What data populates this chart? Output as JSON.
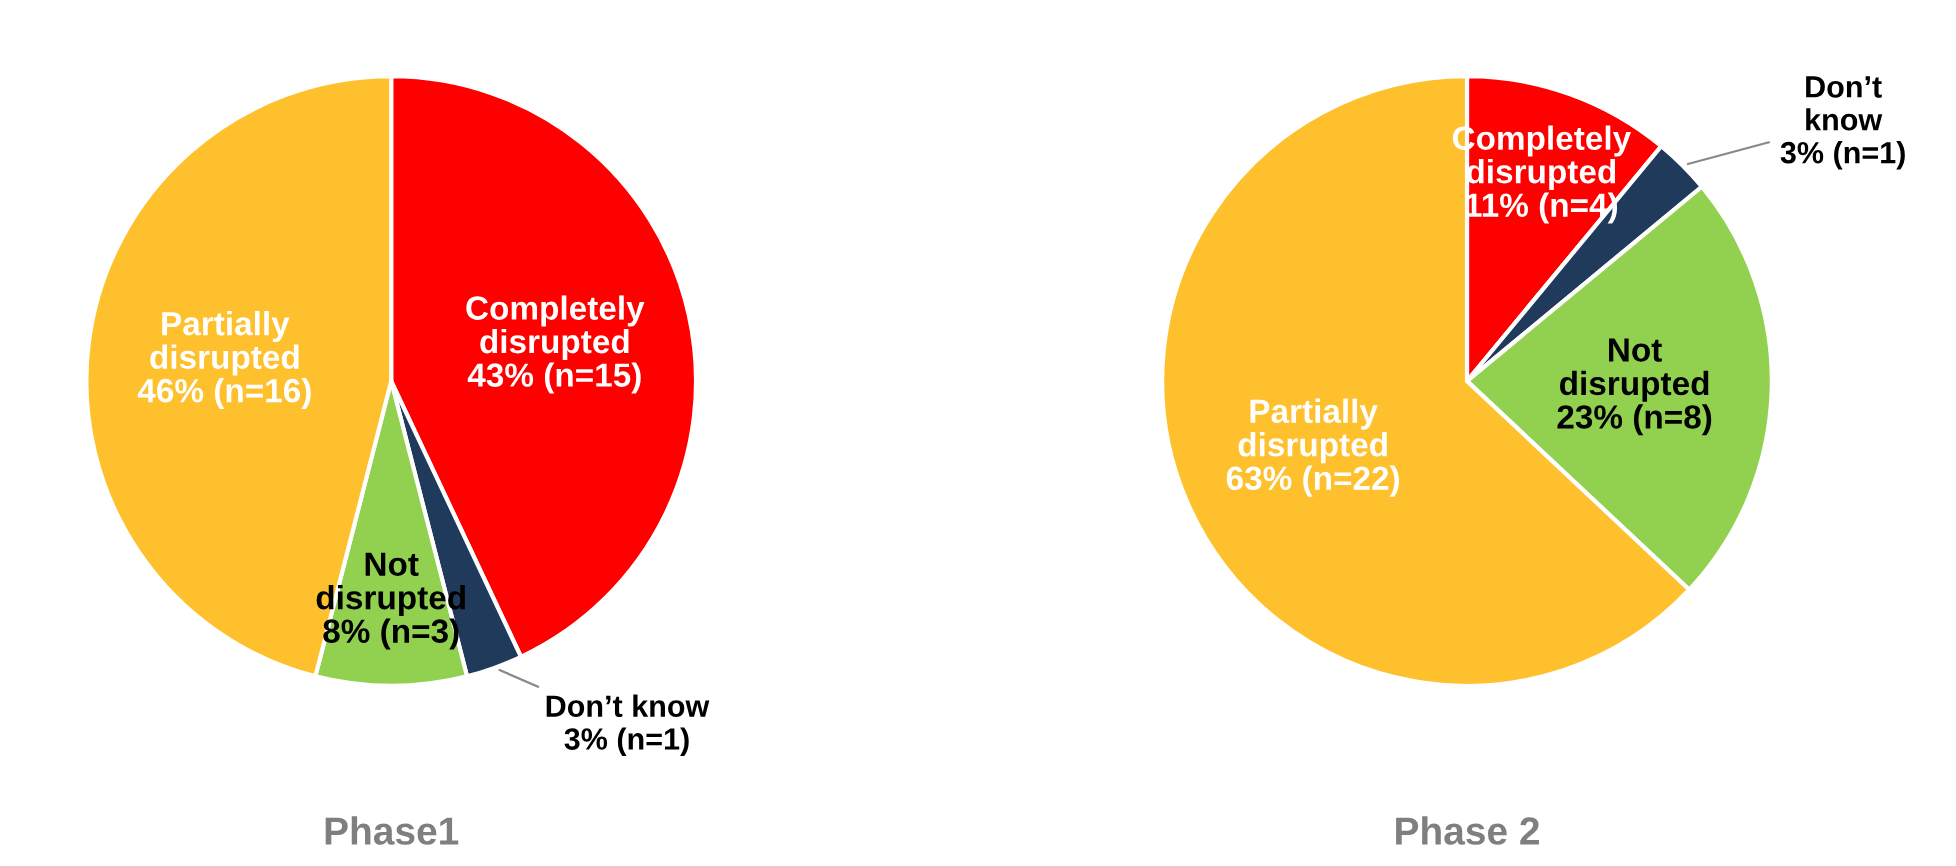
{
  "chart_data": [
    {
      "type": "pie",
      "title": "Phase1",
      "categories": [
        "Completely\ndisrupted",
        "Don’t know",
        "Not\ndisrupted",
        "Partially\ndisrupted"
      ],
      "values": [
        43,
        3,
        8,
        46
      ],
      "value_labels": [
        "43% (n=15)",
        "3% (n=1)",
        "8% (n=3)",
        "46% (n=16)"
      ],
      "colors": [
        "#ff0000",
        "#1f3a5a",
        "#92d050",
        "#ffc02e"
      ]
    },
    {
      "type": "pie",
      "title": "Phase 2",
      "categories": [
        "Completely\ndisrupted",
        "Don’t\nknow",
        "Not\ndisrupted",
        "Partially\ndisrupted"
      ],
      "values": [
        11,
        3,
        23,
        63
      ],
      "value_labels": [
        "11% (n=4)",
        "3% (n=1)",
        "23% (n=8)",
        "63% (n=22)"
      ],
      "colors": [
        "#ff0000",
        "#1f3a5a",
        "#92d050",
        "#ffc02e"
      ]
    }
  ]
}
